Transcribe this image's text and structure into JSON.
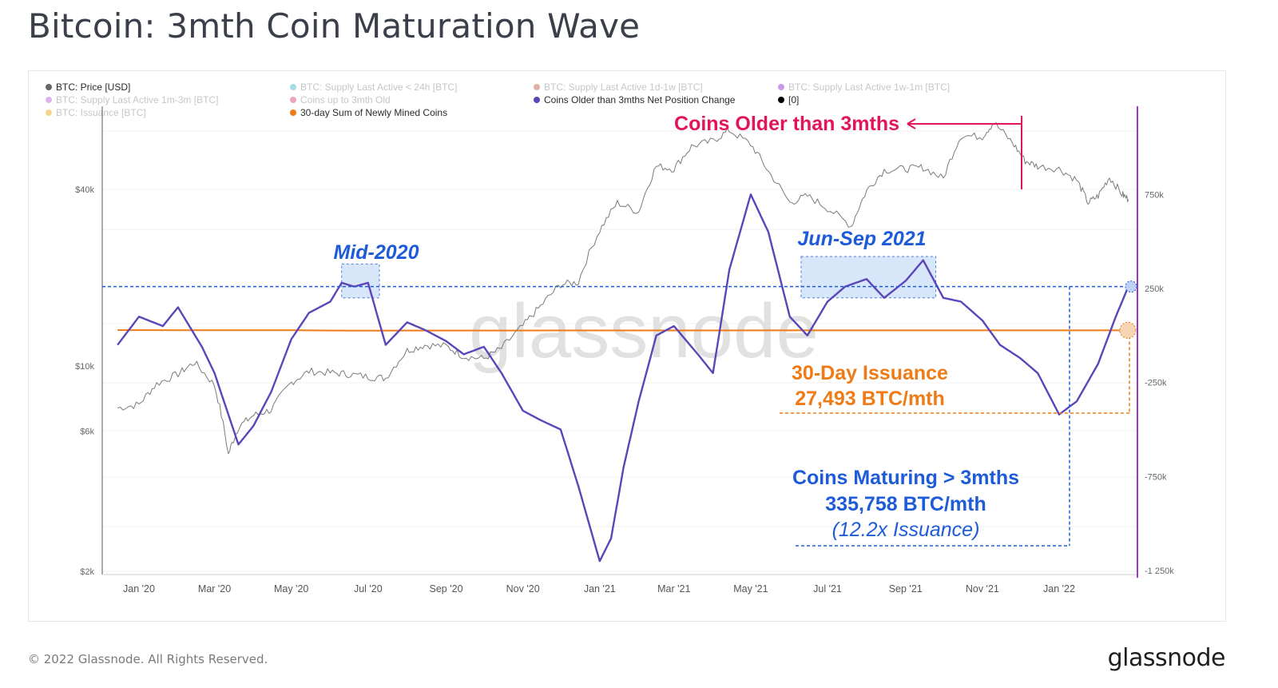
{
  "title": "Bitcoin: 3mth Coin Maturation Wave",
  "footer": {
    "copyright": "© 2022 Glassnode. All Rights Reserved.",
    "logo": "glassnode"
  },
  "watermark": "glassnode",
  "colors": {
    "price": "#7a7a7a",
    "netPosition": "#5b45b8",
    "issuance": "#ef7b16",
    "annotationBlue": "#1e5bd8",
    "annotationRed": "#e2155a",
    "annotationOrange": "#ef7b16",
    "cursor": "#9b35c9"
  },
  "chart_data": {
    "type": "line",
    "left_axis": {
      "scale": "log",
      "ticks": [
        "$2k",
        "$6k",
        "$10k",
        "$40k"
      ]
    },
    "right_axis": {
      "ticks": [
        "750k",
        "250k",
        "-250k",
        "-750k",
        "-1 250k"
      ]
    },
    "x_ticks": [
      "Jan '20",
      "Mar '20",
      "May '20",
      "Jul '20",
      "Sep '20",
      "Nov '20",
      "Jan '21",
      "Mar '21",
      "May '21",
      "Jul '21",
      "Sep '21",
      "Nov '21",
      "Jan '22"
    ],
    "legend": [
      {
        "label": "BTC: Price [USD]",
        "color": "#666666",
        "active": true
      },
      {
        "label": "BTC: Supply Last Active < 24h [BTC]",
        "color": "#5bc0d8",
        "active": false
      },
      {
        "label": "BTC: Supply Last Active 1d-1w [BTC]",
        "color": "#c0705a",
        "active": false
      },
      {
        "label": "BTC: Supply Last Active 1w-1m [BTC]",
        "color": "#9b45d0",
        "active": false
      },
      {
        "label": "BTC: Supply Last Active 1m-3m [BTC]",
        "color": "#c07ad8",
        "active": false
      },
      {
        "label": "Coins up to 3mth Old",
        "color": "#e05a8a",
        "active": false
      },
      {
        "label": "Coins Older than 3mths Net Position Change",
        "color": "#5b45b8",
        "active": true
      },
      {
        "label": "[0]",
        "color": "#000000",
        "active": true
      },
      {
        "label": "BTC: Issuance [BTC]",
        "color": "#f0b030",
        "active": false
      },
      {
        "label": "30-day Sum of Newly Mined Coins",
        "color": "#ef7b16",
        "active": true
      }
    ],
    "series": [
      {
        "name": "BTC: Price [USD]",
        "axis": "left",
        "x": [
          "2019-12-15",
          "2020-01-01",
          "2020-01-15",
          "2020-02-01",
          "2020-02-14",
          "2020-03-01",
          "2020-03-12",
          "2020-03-20",
          "2020-04-01",
          "2020-04-15",
          "2020-05-01",
          "2020-05-15",
          "2020-06-01",
          "2020-06-15",
          "2020-07-01",
          "2020-07-15",
          "2020-08-01",
          "2020-08-15",
          "2020-09-01",
          "2020-09-15",
          "2020-10-01",
          "2020-10-15",
          "2020-11-01",
          "2020-11-15",
          "2020-12-01",
          "2020-12-15",
          "2021-01-01",
          "2021-01-15",
          "2021-02-01",
          "2021-02-15",
          "2021-03-01",
          "2021-03-15",
          "2021-04-01",
          "2021-04-14",
          "2021-05-01",
          "2021-05-15",
          "2021-06-01",
          "2021-06-15",
          "2021-07-01",
          "2021-07-20",
          "2021-08-01",
          "2021-08-15",
          "2021-09-01",
          "2021-09-15",
          "2021-10-01",
          "2021-10-15",
          "2021-11-01",
          "2021-11-10",
          "2021-11-25",
          "2021-12-05",
          "2021-12-15",
          "2022-01-01",
          "2022-01-15",
          "2022-01-24",
          "2022-02-01",
          "2022-02-10",
          "2022-02-20",
          "2022-02-25"
        ],
        "values": [
          7200,
          7400,
          8700,
          9400,
          10300,
          8600,
          5000,
          6200,
          6800,
          7100,
          8800,
          9600,
          9500,
          9400,
          9200,
          9100,
          11300,
          11800,
          11700,
          10800,
          10600,
          11500,
          13700,
          16000,
          19000,
          19300,
          29000,
          36000,
          33500,
          48000,
          47000,
          56000,
          58500,
          63500,
          57000,
          46000,
          36000,
          38000,
          34500,
          30000,
          39500,
          46500,
          47000,
          47500,
          43500,
          61000,
          60500,
          67500,
          57500,
          50000,
          48000,
          47000,
          43000,
          36000,
          38000,
          44000,
          38500,
          37000
        ]
      },
      {
        "name": "Coins Older than 3mths Net Position Change",
        "axis": "right",
        "x": [
          "2019-12-15",
          "2020-01-01",
          "2020-01-20",
          "2020-02-01",
          "2020-02-20",
          "2020-03-01",
          "2020-03-20",
          "2020-04-01",
          "2020-04-15",
          "2020-05-01",
          "2020-05-15",
          "2020-06-01",
          "2020-06-10",
          "2020-06-20",
          "2020-07-01",
          "2020-07-15",
          "2020-08-01",
          "2020-08-15",
          "2020-09-01",
          "2020-09-15",
          "2020-10-01",
          "2020-10-15",
          "2020-11-01",
          "2020-11-15",
          "2020-12-01",
          "2020-12-15",
          "2021-01-01",
          "2021-01-10",
          "2021-01-20",
          "2021-02-01",
          "2021-02-15",
          "2021-03-01",
          "2021-03-20",
          "2021-04-01",
          "2021-04-14",
          "2021-05-01",
          "2021-05-15",
          "2021-06-01",
          "2021-06-15",
          "2021-07-01",
          "2021-07-15",
          "2021-08-01",
          "2021-08-15",
          "2021-09-01",
          "2021-09-15",
          "2021-10-01",
          "2021-10-15",
          "2021-11-01",
          "2021-11-15",
          "2021-12-01",
          "2021-12-15",
          "2022-01-01",
          "2022-01-15",
          "2022-02-01",
          "2022-02-15",
          "2022-02-25"
        ],
        "values": [
          -50000,
          100000,
          50000,
          150000,
          -60000,
          -200000,
          -580000,
          -480000,
          -300000,
          -20000,
          120000,
          180000,
          280000,
          260000,
          280000,
          -50000,
          70000,
          30000,
          -30000,
          -100000,
          -60000,
          -200000,
          -400000,
          -450000,
          -500000,
          -800000,
          -1200000,
          -1080000,
          -700000,
          -350000,
          0,
          50000,
          -100000,
          -200000,
          350000,
          750000,
          550000,
          100000,
          0,
          180000,
          260000,
          300000,
          200000,
          290000,
          400000,
          200000,
          180000,
          80000,
          -50000,
          -120000,
          -200000,
          -420000,
          -350000,
          -150000,
          100000,
          260000
        ]
      },
      {
        "name": "30-day Sum of Newly Mined Coins",
        "axis": "right",
        "x": [
          "2019-12-15",
          "2020-05-01",
          "2020-06-15",
          "2021-01-01",
          "2022-02-25"
        ],
        "values": [
          28500,
          28000,
          26000,
          27000,
          27493
        ]
      }
    ],
    "annotations": {
      "coins_older": "Coins Older than 3mths",
      "mid_2020": "Mid-2020",
      "jun_sep_2021": "Jun-Sep 2021",
      "issuance_line1": "30-Day Issuance",
      "issuance_line2": "27,493 BTC/mth",
      "maturing_line1": "Coins Maturing > 3mths",
      "maturing_line2": "335,758 BTC/mth",
      "maturing_line3": "(12.2x Issuance)"
    },
    "grid": true
  }
}
